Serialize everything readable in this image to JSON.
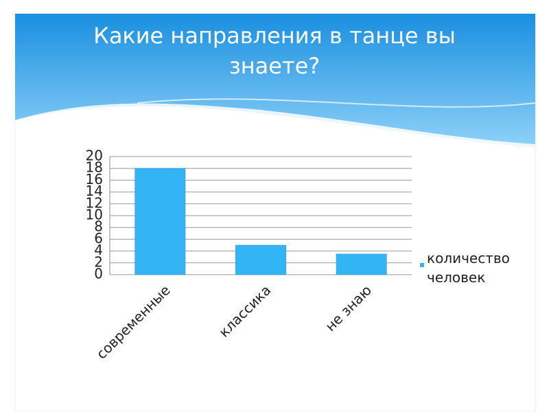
{
  "chart_data": {
    "type": "bar",
    "title": "Какие направления в танце вы знаете?",
    "categories": [
      "современные",
      "классика",
      "не знаю"
    ],
    "series": [
      {
        "name": "количество человек",
        "color": "#33b5f5",
        "values": [
          18,
          5,
          3.5
        ]
      }
    ],
    "ylim": [
      0,
      20
    ],
    "yticks": [
      0,
      2,
      4,
      6,
      8,
      10,
      12,
      14,
      16,
      18,
      20
    ],
    "grid": true,
    "legend": "right"
  }
}
